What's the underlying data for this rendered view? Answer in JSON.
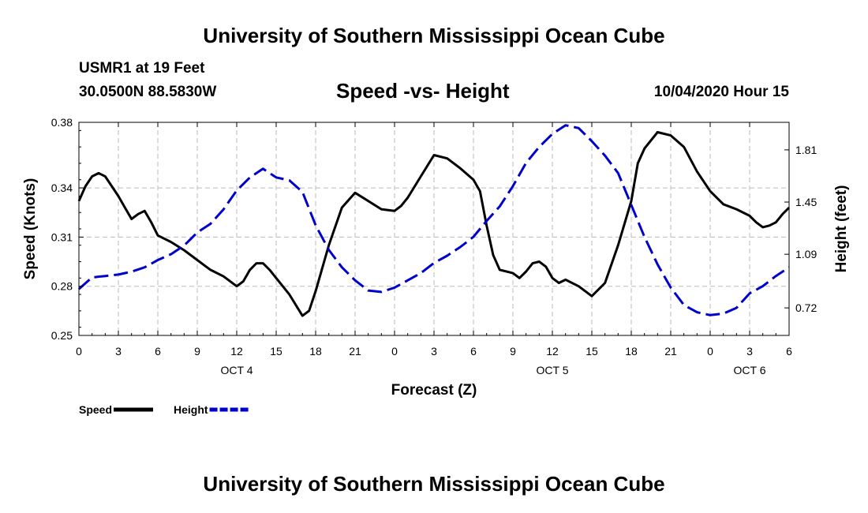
{
  "header": {
    "title": "University of Southern Mississippi Ocean Cube",
    "station": "USMR1 at 19 Feet",
    "coordinates": "30.0500N 88.5830W",
    "subtitle": "Speed -vs- Height",
    "timestamp": "10/04/2020 Hour 15"
  },
  "footer": {
    "title": "University of Southern Mississippi Ocean Cube"
  },
  "chart_data": {
    "type": "line",
    "title": "Speed -vs- Height",
    "xlabel": "Forecast (Z)",
    "ylabel_left": "Speed (Knots)",
    "ylabel_right": "Height (feet)",
    "x_range": [
      0,
      54
    ],
    "x_tick_values": [
      0,
      3,
      6,
      9,
      12,
      15,
      18,
      21,
      24,
      27,
      30,
      33,
      36,
      39,
      42,
      45,
      48,
      51,
      54
    ],
    "x_tick_labels": [
      "0",
      "3",
      "6",
      "9",
      "12",
      "15",
      "18",
      "21",
      "0",
      "3",
      "6",
      "9",
      "12",
      "15",
      "18",
      "21",
      "0",
      "3",
      "6"
    ],
    "day_labels": [
      {
        "label": "OCT 4",
        "x": 12
      },
      {
        "label": "OCT 5",
        "x": 36
      },
      {
        "label": "OCT 6",
        "x": 51
      }
    ],
    "ylim_left": [
      0.25,
      0.38
    ],
    "yticks_left": [
      "0.25",
      "0.28",
      "0.31",
      "0.34",
      "0.38"
    ],
    "ylim_right": [
      0.53,
      2.0
    ],
    "yticks_right": [
      "0.72",
      "1.09",
      "1.45",
      "1.81"
    ],
    "grid": true,
    "series": [
      {
        "name": "Speed",
        "axis": "left",
        "color": "#000000",
        "style": "solid",
        "x": [
          0,
          0.5,
          1,
          1.5,
          2,
          2.5,
          3,
          3.5,
          4,
          4.5,
          5,
          5.5,
          6,
          7,
          8,
          9,
          10,
          11,
          12,
          12.5,
          13,
          13.5,
          14,
          14.5,
          15,
          16,
          17,
          17.5,
          18,
          19,
          20,
          21,
          22,
          23,
          24,
          24.5,
          25,
          26,
          27,
          28,
          29,
          30,
          30.5,
          31,
          31.5,
          32,
          33,
          33.5,
          34,
          34.5,
          35,
          35.5,
          36,
          36.5,
          37,
          38,
          39,
          40,
          41,
          42,
          42.5,
          43,
          44,
          45,
          46,
          47,
          48,
          49,
          50,
          51,
          51.5,
          52,
          52.5,
          53,
          53.5,
          54
        ],
        "values": [
          0.332,
          0.341,
          0.347,
          0.349,
          0.347,
          0.341,
          0.335,
          0.328,
          0.321,
          0.324,
          0.326,
          0.319,
          0.311,
          0.307,
          0.302,
          0.296,
          0.29,
          0.286,
          0.28,
          0.283,
          0.29,
          0.294,
          0.294,
          0.29,
          0.285,
          0.275,
          0.262,
          0.265,
          0.277,
          0.305,
          0.328,
          0.337,
          0.332,
          0.327,
          0.326,
          0.329,
          0.334,
          0.347,
          0.36,
          0.358,
          0.352,
          0.345,
          0.338,
          0.317,
          0.299,
          0.29,
          0.288,
          0.285,
          0.289,
          0.294,
          0.295,
          0.292,
          0.285,
          0.282,
          0.284,
          0.28,
          0.274,
          0.282,
          0.305,
          0.332,
          0.355,
          0.364,
          0.374,
          0.372,
          0.365,
          0.35,
          0.338,
          0.33,
          0.327,
          0.323,
          0.319,
          0.316,
          0.317,
          0.319,
          0.324,
          0.328
        ]
      },
      {
        "name": "Height",
        "axis": "right",
        "color": "#0000cc",
        "style": "dashed",
        "x": [
          0,
          1,
          2,
          3,
          4,
          5,
          6,
          7,
          8,
          9,
          10,
          11,
          12,
          13,
          14,
          15,
          16,
          17,
          18,
          19,
          20,
          21,
          22,
          23,
          24,
          25,
          26,
          27,
          28,
          29,
          30,
          31,
          32,
          33,
          34,
          35,
          36,
          37,
          38,
          39,
          40,
          41,
          42,
          43,
          44,
          45,
          46,
          47,
          48,
          49,
          50,
          51,
          52,
          53,
          54
        ],
        "values": [
          0.85,
          0.93,
          0.94,
          0.95,
          0.97,
          1.0,
          1.05,
          1.09,
          1.15,
          1.24,
          1.3,
          1.4,
          1.53,
          1.62,
          1.68,
          1.62,
          1.6,
          1.52,
          1.29,
          1.12,
          1.0,
          0.91,
          0.84,
          0.83,
          0.86,
          0.91,
          0.96,
          1.03,
          1.08,
          1.14,
          1.21,
          1.32,
          1.42,
          1.56,
          1.72,
          1.83,
          1.92,
          1.98,
          1.96,
          1.87,
          1.77,
          1.65,
          1.43,
          1.21,
          1.02,
          0.86,
          0.74,
          0.69,
          0.67,
          0.68,
          0.72,
          0.82,
          0.87,
          0.94,
          1.0
        ]
      }
    ],
    "legend": [
      {
        "label": "Speed",
        "color": "#000000",
        "style": "solid"
      },
      {
        "label": "Height",
        "color": "#0000cc",
        "style": "dashed"
      }
    ],
    "legend_position": "bottom-left"
  }
}
